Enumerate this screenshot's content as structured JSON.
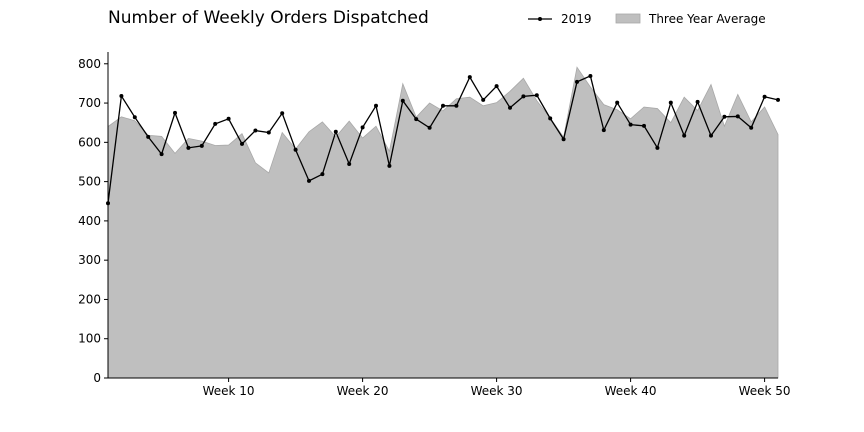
{
  "chart_data": {
    "type": "line",
    "title": "Number of Weekly Orders Dispatched",
    "xlabel": "",
    "ylabel": "",
    "x": [
      1,
      2,
      3,
      4,
      5,
      6,
      7,
      8,
      9,
      10,
      11,
      12,
      13,
      14,
      15,
      16,
      17,
      18,
      19,
      20,
      21,
      22,
      23,
      24,
      25,
      26,
      27,
      28,
      29,
      30,
      31,
      32,
      33,
      34,
      35,
      36,
      37,
      38,
      39,
      40,
      41,
      42,
      43,
      44,
      45,
      46,
      47,
      48,
      49,
      50,
      51
    ],
    "xlim": [
      1,
      51
    ],
    "ylim": [
      0,
      830
    ],
    "xticks": [
      10,
      20,
      30,
      40,
      50
    ],
    "xtick_labels": [
      "Week 10",
      "Week 20",
      "Week 30",
      "Week 40",
      "Week 50"
    ],
    "yticks": [
      0,
      100,
      200,
      300,
      400,
      500,
      600,
      700,
      800
    ],
    "grid": false,
    "legend_position": "top-right",
    "series": [
      {
        "name": "2019",
        "kind": "line",
        "color": "#000000",
        "values": [
          445,
          718,
          664,
          614,
          570,
          675,
          586,
          591,
          647,
          660,
          596,
          630,
          625,
          674,
          581,
          502,
          519,
          627,
          545,
          638,
          693,
          540,
          706,
          659,
          637,
          693,
          693,
          766,
          708,
          743,
          688,
          717,
          720,
          661,
          608,
          754,
          769,
          631,
          701,
          645,
          642,
          586,
          701,
          617,
          703,
          617,
          665,
          666,
          637,
          716,
          708
        ]
      },
      {
        "name": "Three Year Average",
        "kind": "area",
        "color": "#bfbfbf",
        "values": [
          640,
          665,
          655,
          618,
          615,
          572,
          610,
          603,
          592,
          593,
          622,
          548,
          522,
          625,
          583,
          627,
          652,
          614,
          654,
          611,
          641,
          577,
          749,
          664,
          700,
          680,
          711,
          715,
          693,
          701,
          730,
          763,
          706,
          662,
          613,
          791,
          741,
          696,
          683,
          660,
          690,
          686,
          650,
          715,
          681,
          747,
          641,
          722,
          652,
          690,
          620
        ]
      }
    ]
  }
}
